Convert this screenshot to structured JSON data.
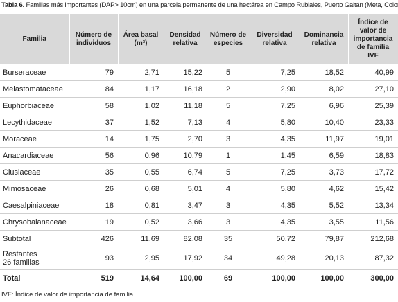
{
  "title": {
    "label": "Tabla 6.",
    "text": "Familias más importantes (DAP> 10cm) en una parcela permanente de una hectárea en Campo Rubiales, Puerto Gaitán (Meta, Colombia)"
  },
  "table": {
    "header": [
      "Familia",
      "Número de individuos",
      "Área basal (m²)",
      "Densidad relativa",
      "Número de especies",
      "Diversidad relativa",
      "Dominancia relativa",
      "Índice de valor de importancia de familia IVF"
    ],
    "rows": [
      [
        "Burseraceae",
        "79",
        "2,71",
        "15,22",
        "5",
        "7,25",
        "18,52",
        "40,99"
      ],
      [
        "Melastomataceae",
        "84",
        "1,17",
        "16,18",
        "2",
        "2,90",
        "8,02",
        "27,10"
      ],
      [
        "Euphorbiaceae",
        "58",
        "1,02",
        "11,18",
        "5",
        "7,25",
        "6,96",
        "25,39"
      ],
      [
        "Lecythidaceae",
        "37",
        "1,52",
        "7,13",
        "4",
        "5,80",
        "10,40",
        "23,33"
      ],
      [
        "Moraceae",
        "14",
        "1,75",
        "2,70",
        "3",
        "4,35",
        "11,97",
        "19,01"
      ],
      [
        "Anacardiaceae",
        "56",
        "0,96",
        "10,79",
        "1",
        "1,45",
        "6,59",
        "18,83"
      ],
      [
        "Clusiaceae",
        "35",
        "0,55",
        "6,74",
        "5",
        "7,25",
        "3,73",
        "17,72"
      ],
      [
        "Mimosaceae",
        "26",
        "0,68",
        "5,01",
        "4",
        "5,80",
        "4,62",
        "15,42"
      ],
      [
        "Caesalpiniaceae",
        "18",
        "0,81",
        "3,47",
        "3",
        "4,35",
        "5,52",
        "13,34"
      ],
      [
        "Chrysobalanaceae",
        "19",
        "0,52",
        "3,66",
        "3",
        "4,35",
        "3,55",
        "11,56"
      ],
      [
        "Subtotal",
        "426",
        "11,69",
        "82,08",
        "35",
        "50,72",
        "79,87",
        "212,68"
      ],
      [
        [
          "Restantes",
          "26 familias"
        ],
        "93",
        "2,95",
        "17,92",
        "34",
        "49,28",
        "20,13",
        "87,32"
      ],
      [
        "Total",
        "519",
        "14,64",
        "100,00",
        "69",
        "100,00",
        "100,00",
        "300,00"
      ]
    ]
  },
  "footnote": "IVF: Índice de valor de importancia de familia"
}
